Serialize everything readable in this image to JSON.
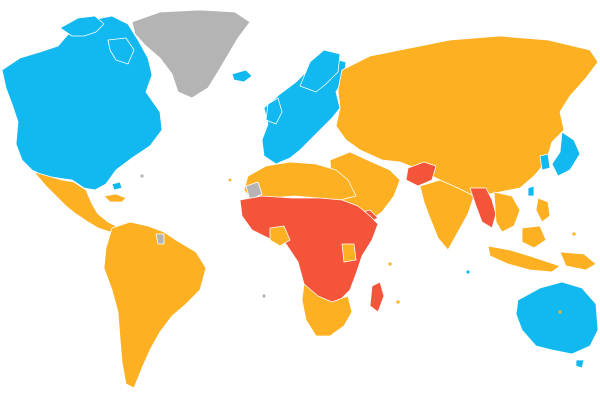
{
  "map": {
    "type": "choropleth-world",
    "colors": {
      "blue": "#12b8f0",
      "orange": "#fdb022",
      "red": "#f4553a",
      "gray": "#b4b4b4",
      "background": "#ffffff",
      "border": "#ffffff"
    },
    "categories": [
      {
        "key": "blue",
        "regions": [
          "north-america",
          "europe",
          "japan-korea",
          "oceania"
        ]
      },
      {
        "key": "orange",
        "regions": [
          "latin-america",
          "south-america",
          "north-africa",
          "russia-asia",
          "middle-east",
          "south-asia",
          "southeast-asia",
          "southern-africa"
        ]
      },
      {
        "key": "red",
        "regions": [
          "sub-saharan-africa",
          "afghanistan",
          "myanmar-region",
          "madagascar",
          "yemen"
        ]
      },
      {
        "key": "gray",
        "regions": [
          "greenland",
          "western-sahara",
          "french-guiana-area"
        ]
      }
    ]
  }
}
